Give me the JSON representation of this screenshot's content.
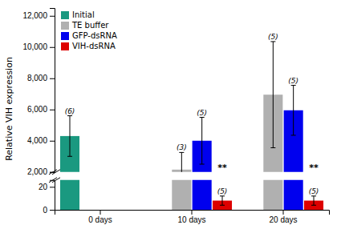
{
  "chart_data": {
    "type": "bar",
    "ylabel": "Relative VIH expression",
    "categories": [
      "0 days",
      "10 days",
      "20 days"
    ],
    "series": [
      {
        "name": "Initial",
        "color": "#1a9980",
        "values": [
          4300,
          null,
          null
        ],
        "errors": [
          1300,
          null,
          null
        ],
        "n": [
          "(6)",
          null,
          null
        ]
      },
      {
        "name": "TE buffer",
        "color": "#b0b0b0",
        "values": [
          null,
          2150,
          6950
        ],
        "errors": [
          null,
          1100,
          3400
        ],
        "n": [
          null,
          "(3)",
          "(5)"
        ]
      },
      {
        "name": "GFP-dsRNA",
        "color": "#0000ee",
        "values": [
          null,
          4000,
          5950
        ],
        "errors": [
          null,
          1500,
          1600
        ],
        "n": [
          null,
          "(5)",
          "(5)"
        ]
      },
      {
        "name": "VIH-dsRNA",
        "color": "#dd0000",
        "values": [
          null,
          8,
          8
        ],
        "errors": [
          null,
          4,
          4
        ],
        "n": [
          null,
          "(5)",
          "(5)"
        ],
        "sig": [
          null,
          "**",
          "**"
        ],
        "axis": "y2"
      }
    ],
    "ylim": [
      2000,
      12500
    ],
    "yticks": [
      {
        "value": 2000,
        "label": "2,000"
      },
      {
        "value": 4000,
        "label": "4,000"
      },
      {
        "value": 6000,
        "label": "6,000"
      },
      {
        "value": 8000,
        "label": "8,000"
      },
      {
        "value": 10000,
        "label": "10,000"
      },
      {
        "value": 12000,
        "label": "12,000"
      }
    ],
    "y2lim": [
      0,
      26
    ],
    "y2ticks": [
      0,
      20
    ],
    "legend": "upper left",
    "grid": false
  }
}
